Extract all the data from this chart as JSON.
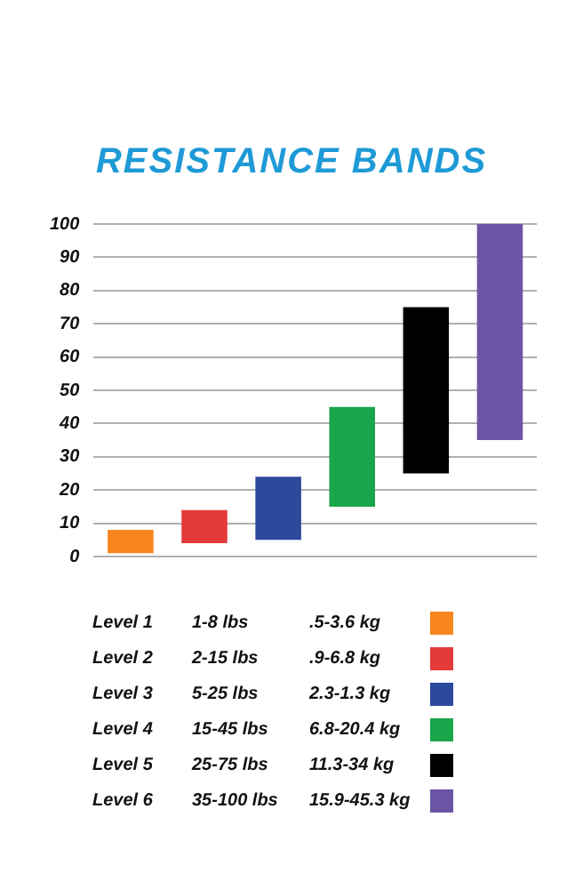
{
  "chart_data": {
    "type": "bar",
    "title": "RESISTANCE BANDS",
    "categories": [
      null,
      null,
      null,
      null,
      null,
      null
    ],
    "base": [
      1,
      4,
      5,
      15,
      25,
      35
    ],
    "values": [
      7,
      10,
      19,
      30,
      50,
      65
    ],
    "colors": [
      "#f7861e",
      "#e53a3a",
      "#2c4a9c",
      "#1aa64a",
      "#000000",
      "#6b55a4"
    ],
    "ylim": [
      0,
      100
    ],
    "yticks": [
      0,
      10,
      20,
      30,
      40,
      50,
      60,
      70,
      80,
      90,
      100
    ],
    "grid": "y",
    "annotations": [
      "Level  1",
      "1-8  lbs",
      ".5-3.6  kg",
      "Level  2",
      "2-15  lbs",
      ".9-6.8  kg",
      "Level  3",
      "5-25  lbs",
      "2.3-1.3  kg",
      "Level  4",
      "15-45  lbs",
      "6.8-20.4  kg",
      "Level  5",
      "25-75  lbs",
      "11.3-34  kg",
      "Level  6",
      "35-100  lbs",
      "15.9-45.3  kg"
    ]
  }
}
